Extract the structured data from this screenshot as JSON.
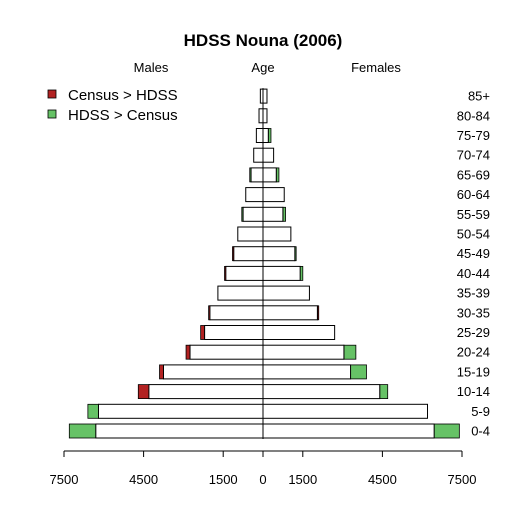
{
  "chart_data": {
    "type": "population-pyramid",
    "title": "HDSS Nouna (2006)",
    "header_left": "Males",
    "header_center": "Age",
    "header_right": "Females",
    "legend": [
      {
        "label": "Census > HDSS",
        "color": "#b22222"
      },
      {
        "label": "HDSS > Census",
        "color": "#66c266"
      }
    ],
    "x_ticks": [
      {
        "value": -7500,
        "label": "7500"
      },
      {
        "value": -4500,
        "label": "4500"
      },
      {
        "value": -1500,
        "label": "1500"
      },
      {
        "value": 0,
        "label": "0"
      },
      {
        "value": 1500,
        "label": "1500"
      },
      {
        "value": 4500,
        "label": "4500"
      },
      {
        "value": 7500,
        "label": "7500"
      }
    ],
    "xlim": [
      -7500,
      7500
    ],
    "groups": [
      {
        "age": "0-4",
        "male_census": 6300,
        "male_hdss": 7300,
        "female_census": 6450,
        "female_hdss": 7400
      },
      {
        "age": "5-9",
        "male_census": 6200,
        "male_hdss": 6600,
        "female_census": 6200,
        "female_hdss": 6200
      },
      {
        "age": "10-14",
        "male_census": 4700,
        "male_hdss": 4300,
        "female_census": 4400,
        "female_hdss": 4700
      },
      {
        "age": "15-19",
        "male_census": 3900,
        "male_hdss": 3750,
        "female_census": 3300,
        "female_hdss": 3900
      },
      {
        "age": "20-24",
        "male_census": 2900,
        "male_hdss": 2750,
        "female_census": 3050,
        "female_hdss": 3500
      },
      {
        "age": "25-29",
        "male_census": 2350,
        "male_hdss": 2200,
        "female_census": 2700,
        "female_hdss": 2700
      },
      {
        "age": "30-35",
        "male_census": 2050,
        "male_hdss": 2000,
        "female_census": 2100,
        "female_hdss": 2050
      },
      {
        "age": "35-39",
        "male_census": 1700,
        "male_hdss": 1700,
        "female_census": 1750,
        "female_hdss": 1750
      },
      {
        "age": "40-44",
        "male_census": 1450,
        "male_hdss": 1400,
        "female_census": 1400,
        "female_hdss": 1500
      },
      {
        "age": "45-49",
        "male_census": 1150,
        "male_hdss": 1100,
        "female_census": 1200,
        "female_hdss": 1250
      },
      {
        "age": "50-54",
        "male_census": 950,
        "male_hdss": 950,
        "female_census": 1050,
        "female_hdss": 1050
      },
      {
        "age": "55-59",
        "male_census": 750,
        "male_hdss": 800,
        "female_census": 750,
        "female_hdss": 850
      },
      {
        "age": "60-64",
        "male_census": 650,
        "male_hdss": 650,
        "female_census": 800,
        "female_hdss": 800
      },
      {
        "age": "65-69",
        "male_census": 450,
        "male_hdss": 500,
        "female_census": 500,
        "female_hdss": 600
      },
      {
        "age": "70-74",
        "male_census": 350,
        "male_hdss": 350,
        "female_census": 400,
        "female_hdss": 400
      },
      {
        "age": "75-79",
        "male_census": 250,
        "male_hdss": 250,
        "female_census": 200,
        "female_hdss": 300
      },
      {
        "age": "80-84",
        "male_census": 150,
        "male_hdss": 150,
        "female_census": 150,
        "female_hdss": 150
      },
      {
        "age": "85+",
        "male_census": 100,
        "male_hdss": 100,
        "female_census": 150,
        "female_hdss": 150
      }
    ]
  }
}
